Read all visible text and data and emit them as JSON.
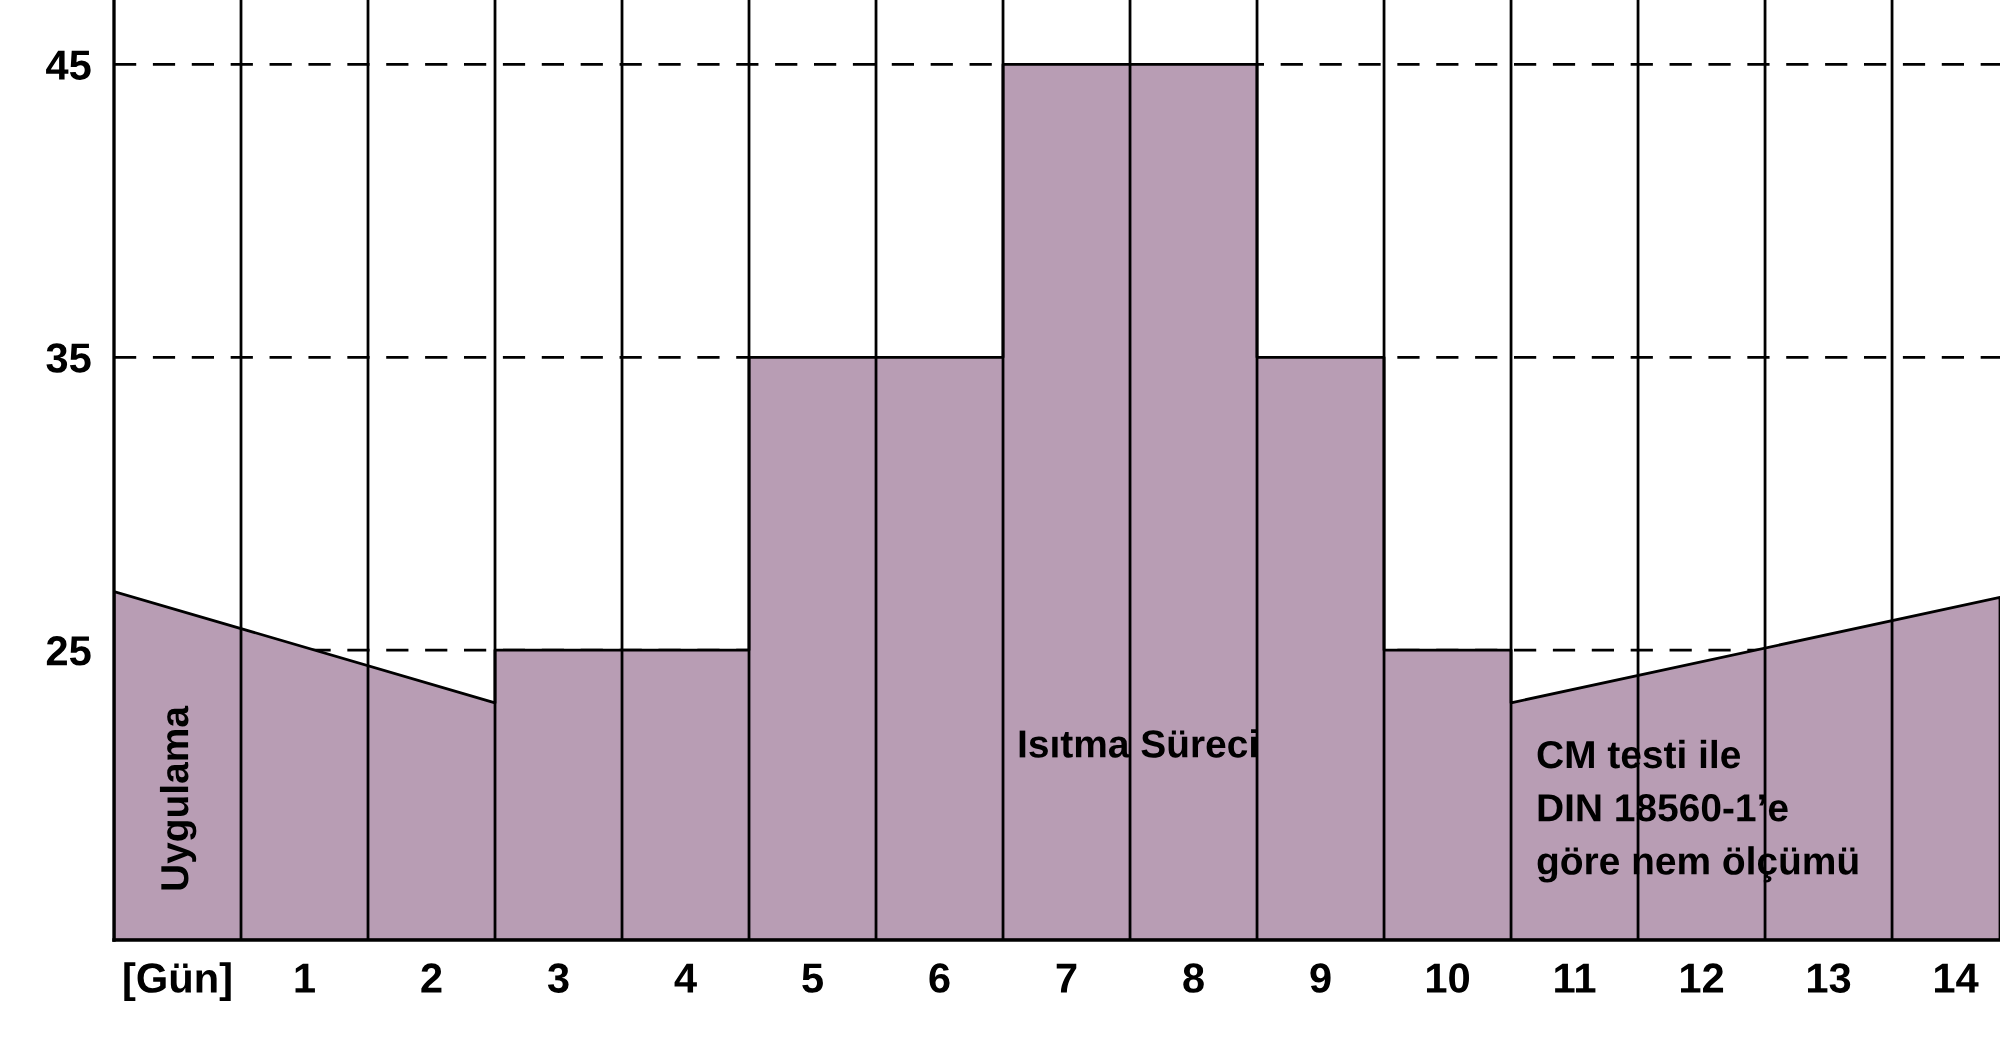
{
  "chart_data": {
    "type": "area",
    "x": [
      -1,
      2,
      2,
      4,
      4,
      6,
      6,
      8,
      8,
      9,
      9,
      10,
      10,
      13.85
    ],
    "series": [
      {
        "color": "#b89db4",
        "values": [
          27.0,
          23.2,
          25,
          25,
          35,
          35,
          45,
          45,
          35,
          35,
          25,
          25,
          23.2,
          26.8
        ]
      }
    ],
    "xlim": [
      -1,
      13.85
    ],
    "xticks": [
      {
        "value": -0.5,
        "label": "[Gün]"
      },
      {
        "value": 0.5,
        "label": "1"
      },
      {
        "value": 1.5,
        "label": "2"
      },
      {
        "value": 2.5,
        "label": "3"
      },
      {
        "value": 3.5,
        "label": "4"
      },
      {
        "value": 4.5,
        "label": "5"
      },
      {
        "value": 5.5,
        "label": "6"
      },
      {
        "value": 6.5,
        "label": "7"
      },
      {
        "value": 7.5,
        "label": "8"
      },
      {
        "value": 8.5,
        "label": "9"
      },
      {
        "value": 9.5,
        "label": "10"
      },
      {
        "value": 10.5,
        "label": "11"
      },
      {
        "value": 11.5,
        "label": "12"
      },
      {
        "value": 12.5,
        "label": "13"
      },
      {
        "value": 13.5,
        "label": "14"
      }
    ],
    "ylim": [
      15.1,
      47.2
    ],
    "yticks": [
      25,
      35,
      45
    ],
    "grid": "y",
    "ref_lines": [
      {
        "axis": "x",
        "value": 0,
        "color": "#000000"
      },
      {
        "axis": "x",
        "value": 1,
        "color": "#000000"
      },
      {
        "axis": "x",
        "value": 2,
        "color": "#000000"
      },
      {
        "axis": "x",
        "value": 3,
        "color": "#000000"
      },
      {
        "axis": "x",
        "value": 4,
        "color": "#000000"
      },
      {
        "axis": "x",
        "value": 5,
        "color": "#000000"
      },
      {
        "axis": "x",
        "value": 6,
        "color": "#000000"
      },
      {
        "axis": "x",
        "value": 7,
        "color": "#000000"
      },
      {
        "axis": "x",
        "value": 8,
        "color": "#000000"
      },
      {
        "axis": "x",
        "value": 9,
        "color": "#000000"
      },
      {
        "axis": "x",
        "value": 10,
        "color": "#000000"
      },
      {
        "axis": "x",
        "value": 11,
        "color": "#000000"
      },
      {
        "axis": "x",
        "value": 12,
        "color": "#000000"
      },
      {
        "axis": "x",
        "value": 13,
        "color": "#000000"
      }
    ],
    "annotations": [
      "Uygulama",
      "Isıtma Süreci",
      "CM testi ile\nDIN 18560-1’e\ngöre nem ölçümü"
    ]
  }
}
